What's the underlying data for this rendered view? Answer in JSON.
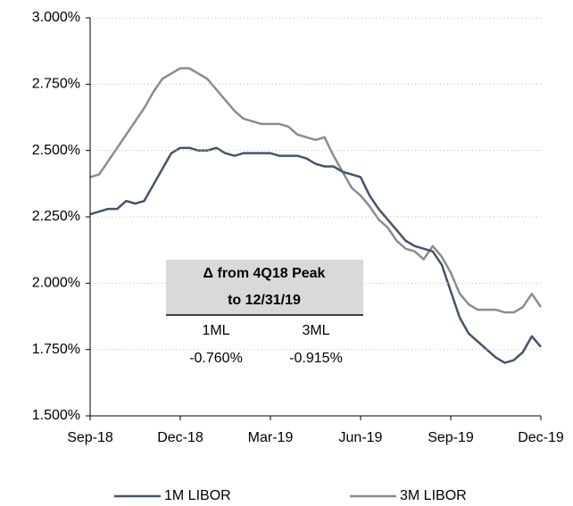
{
  "chart_data": {
    "type": "line",
    "categories": [
      "Sep-18",
      null,
      null,
      null,
      null,
      null,
      null,
      null,
      null,
      null,
      "Dec-18",
      null,
      null,
      null,
      null,
      null,
      null,
      null,
      null,
      null,
      "Mar-19",
      null,
      null,
      null,
      null,
      null,
      null,
      null,
      null,
      null,
      "Jun-19",
      null,
      null,
      null,
      null,
      null,
      null,
      null,
      null,
      null,
      "Sep-19",
      null,
      null,
      null,
      null,
      null,
      null,
      null,
      null,
      null,
      "Dec-19"
    ],
    "series": [
      {
        "name": "1M LIBOR",
        "color": "#44546a",
        "values": [
          2.26,
          2.27,
          2.28,
          2.28,
          2.31,
          2.3,
          2.31,
          2.37,
          2.43,
          2.49,
          2.51,
          2.51,
          2.5,
          2.5,
          2.51,
          2.49,
          2.48,
          2.49,
          2.49,
          2.49,
          2.49,
          2.48,
          2.48,
          2.48,
          2.47,
          2.45,
          2.44,
          2.44,
          2.42,
          2.41,
          2.4,
          2.33,
          2.28,
          2.24,
          2.2,
          2.16,
          2.14,
          2.13,
          2.12,
          2.07,
          1.97,
          1.87,
          1.81,
          1.78,
          1.75,
          1.72,
          1.7,
          1.71,
          1.74,
          1.8,
          1.76
        ]
      },
      {
        "name": "3M LIBOR",
        "color": "#8c8c8c",
        "values": [
          2.4,
          2.41,
          2.46,
          2.51,
          2.56,
          2.61,
          2.66,
          2.72,
          2.77,
          2.79,
          2.81,
          2.81,
          2.79,
          2.77,
          2.73,
          2.69,
          2.65,
          2.62,
          2.61,
          2.6,
          2.6,
          2.6,
          2.59,
          2.56,
          2.55,
          2.54,
          2.55,
          2.48,
          2.42,
          2.36,
          2.33,
          2.29,
          2.24,
          2.21,
          2.16,
          2.13,
          2.12,
          2.09,
          2.14,
          2.1,
          2.04,
          1.96,
          1.92,
          1.9,
          1.9,
          1.9,
          1.89,
          1.89,
          1.91,
          1.96,
          1.91
        ]
      }
    ],
    "ylim": [
      1.5,
      3.0
    ],
    "yticks": [
      {
        "value": 1.5,
        "label": "1.500%"
      },
      {
        "value": 1.75,
        "label": "1.750%"
      },
      {
        "value": 2.0,
        "label": "2.000%"
      },
      {
        "value": 2.25,
        "label": "2.250%"
      },
      {
        "value": 2.5,
        "label": "2.500%"
      },
      {
        "value": 2.75,
        "label": "2.750%"
      },
      {
        "value": 3.0,
        "label": "3.000%"
      }
    ],
    "grid": true,
    "legend": "bottom",
    "annotation": {
      "title_lines": [
        "Δ from 4Q18 Peak",
        "to 12/31/19"
      ],
      "columns": [
        "1ML",
        "3ML"
      ],
      "values": [
        "-0.760%",
        "-0.915%"
      ]
    }
  }
}
